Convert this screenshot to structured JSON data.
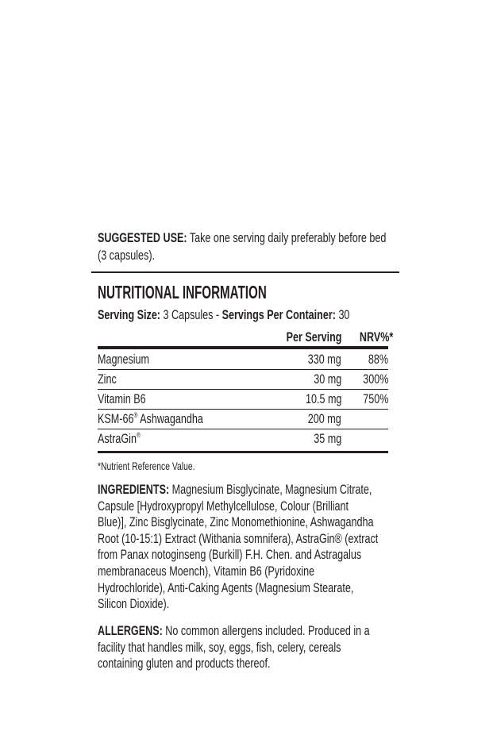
{
  "suggested_use": {
    "label": "SUGGESTED USE:",
    "lines": [
      " Take one serving daily preferably before bed",
      "(3 capsules)."
    ]
  },
  "nutrition": {
    "title": "NUTRITIONAL INFORMATION",
    "serving_size_label": "Serving Size:",
    "serving_size_value": " 3 Capsules - ",
    "servings_per_container_label": "Servings Per Container:",
    "servings_per_container_value": " 30",
    "columns": [
      "Per Serving",
      "NRV%*"
    ],
    "rows": [
      {
        "name": "Magnesium",
        "amount": "330 mg",
        "nrv": "88%"
      },
      {
        "name": "Zinc",
        "amount": "30 mg",
        "nrv": "300%"
      },
      {
        "name": "Vitamin B6",
        "amount": "10.5 mg",
        "nrv": "750%"
      },
      {
        "name": "KSM-66",
        "reg": "®",
        "name_suffix": " Ashwagandha",
        "amount": "200 mg",
        "nrv": ""
      },
      {
        "name": "AstraGin",
        "reg": "®",
        "name_suffix": "",
        "amount": "35 mg",
        "nrv": ""
      }
    ],
    "footnote": "*Nutrient Reference Value."
  },
  "ingredients": {
    "label": "INGREDIENTS:",
    "lines": [
      " Magnesium Bisglycinate, Magnesium Citrate,",
      "Capsule [Hydroxypropyl Methylcellulose, Colour (Brilliant",
      "Blue)], Zinc Bisglycinate, Zinc Monomethionine, Ashwagandha",
      "Root (10-15:1) Extract (Withania somnifera), AstraGin® (extract",
      "from Panax notoginseng (Burkill) F.H. Chen. and Astragalus",
      "membranaceus Moench), Vitamin B6 (Pyridoxine",
      "Hydrochloride), Anti-Caking Agents (Magnesium Stearate,",
      "Silicon Dioxide)."
    ]
  },
  "allergens": {
    "label": "ALLERGENS:",
    "lines": [
      " No common allergens included. Produced in a",
      "facility that handles milk, soy, eggs, fish, celery, cereals",
      "containing gluten and products thereof."
    ]
  }
}
